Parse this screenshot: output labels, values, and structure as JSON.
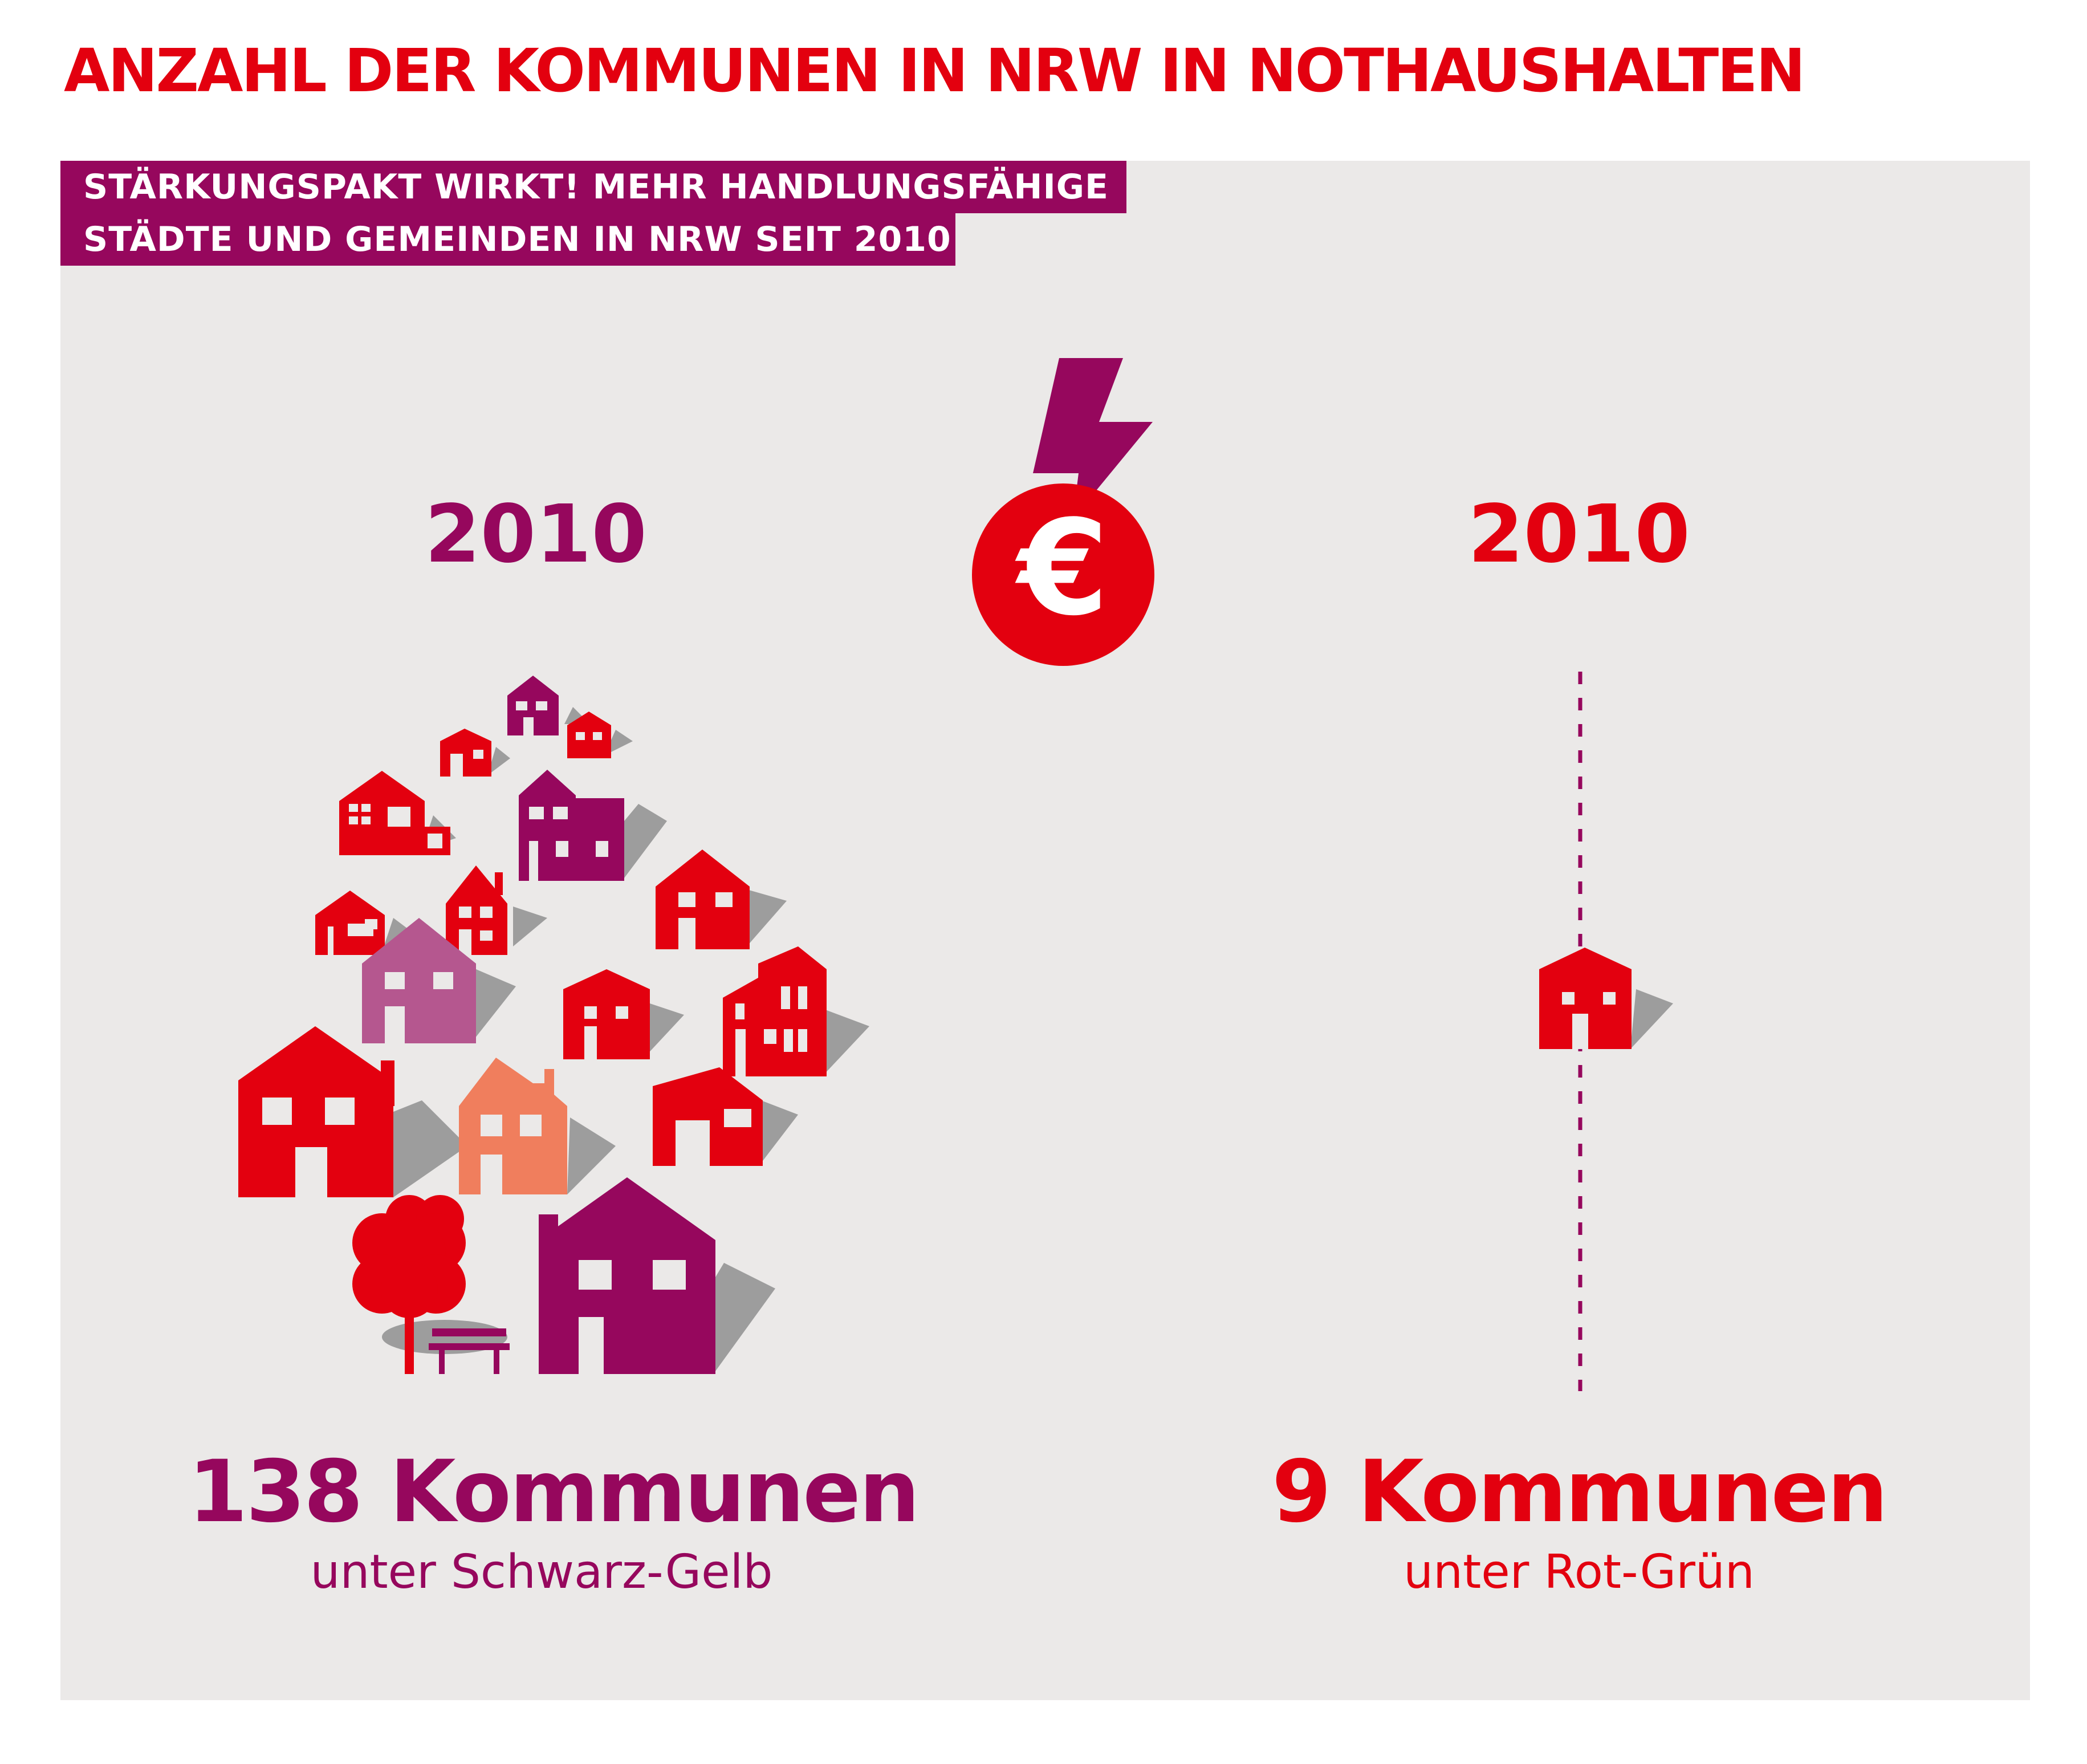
{
  "title": "ANZAHL DER KOMMUNEN IN NRW IN NOTHAUSHALTEN",
  "subtitle": {
    "line1": "STÄRKUNGSPAKT WIRKT! MEHR HANDLUNGSFÄHIGE",
    "line2": "STÄDTE UND GEMEINDEN IN NRW SEIT 2010"
  },
  "euro_symbol": "€",
  "left": {
    "year": "2010",
    "count": "138 Kommunen",
    "caption": "unter Schwarz-Gelb"
  },
  "right": {
    "year": "2010",
    "count": "9 Kommunen",
    "caption": "unter Rot-Grün"
  },
  "icons": {
    "lightning": "lightning-bolt-icon",
    "euro_coin": "euro-coin-icon",
    "house": "house-icon",
    "tree": "tree-icon",
    "bench": "bench-icon"
  },
  "colors": {
    "red": "#e3000f",
    "purple": "#96075d",
    "mauve": "#b5578f",
    "salmon": "#f07e5d",
    "panel": "#ebe9e8",
    "shadow": "#9d9d9d"
  }
}
